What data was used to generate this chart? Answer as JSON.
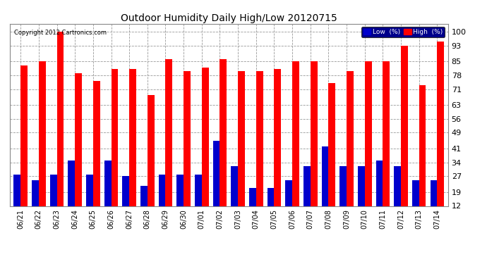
{
  "title": "Outdoor Humidity Daily High/Low 20120715",
  "copyright": "Copyright 2012 Cartronics.com",
  "categories": [
    "06/21",
    "06/22",
    "06/23",
    "06/24",
    "06/25",
    "06/26",
    "06/27",
    "06/28",
    "06/29",
    "06/30",
    "07/01",
    "07/02",
    "07/03",
    "07/04",
    "07/05",
    "07/06",
    "07/07",
    "07/08",
    "07/09",
    "07/10",
    "07/11",
    "07/12",
    "07/13",
    "07/14"
  ],
  "high_values": [
    83,
    85,
    100,
    79,
    75,
    81,
    81,
    68,
    86,
    80,
    82,
    86,
    80,
    80,
    81,
    85,
    85,
    74,
    80,
    85,
    85,
    93,
    73,
    95
  ],
  "low_values": [
    28,
    25,
    28,
    35,
    28,
    35,
    27,
    22,
    28,
    28,
    28,
    45,
    32,
    21,
    21,
    25,
    32,
    42,
    32,
    32,
    35,
    32,
    25,
    25
  ],
  "high_color": "#ff0000",
  "low_color": "#0000cc",
  "bg_color": "#ffffff",
  "grid_color": "#999999",
  "yticks": [
    12,
    19,
    27,
    34,
    41,
    49,
    56,
    63,
    71,
    78,
    85,
    93,
    100
  ],
  "ylim": [
    12,
    104
  ],
  "ymin": 12,
  "legend_low_label": "Low  (%)",
  "legend_high_label": "High  (%)",
  "bar_width": 0.38
}
